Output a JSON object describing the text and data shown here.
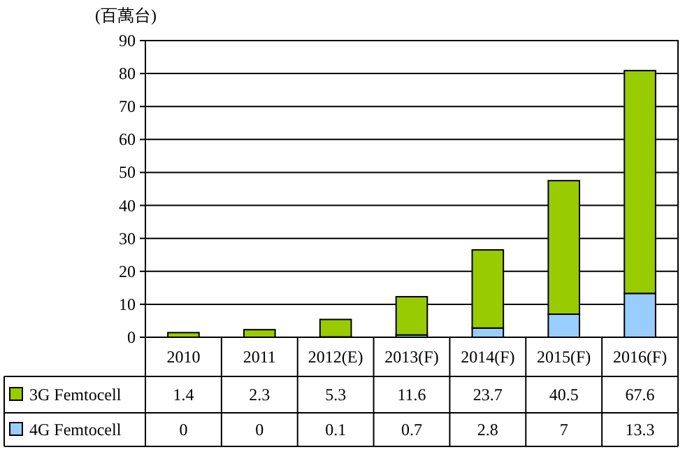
{
  "chart_data": {
    "type": "bar",
    "stacked": true,
    "ylabel": "(百萬台)",
    "categories": [
      "2010",
      "2011",
      "2012(E)",
      "2013(F)",
      "2014(F)",
      "2015(F)",
      "2016(F)"
    ],
    "series": [
      {
        "name": "4G Femtocell",
        "color": "#99ccff",
        "values": [
          0,
          0,
          0.1,
          0.7,
          2.8,
          7,
          13.3
        ]
      },
      {
        "name": "3G Femtocell",
        "color": "#99cc00",
        "values": [
          1.4,
          2.3,
          5.3,
          11.6,
          23.7,
          40.5,
          67.6
        ]
      }
    ],
    "ylim": [
      0,
      90
    ],
    "yticks": [
      0,
      10,
      20,
      30,
      40,
      50,
      60,
      70,
      80,
      90
    ],
    "grid": "y",
    "legend": "bottom",
    "data_labels": true
  }
}
